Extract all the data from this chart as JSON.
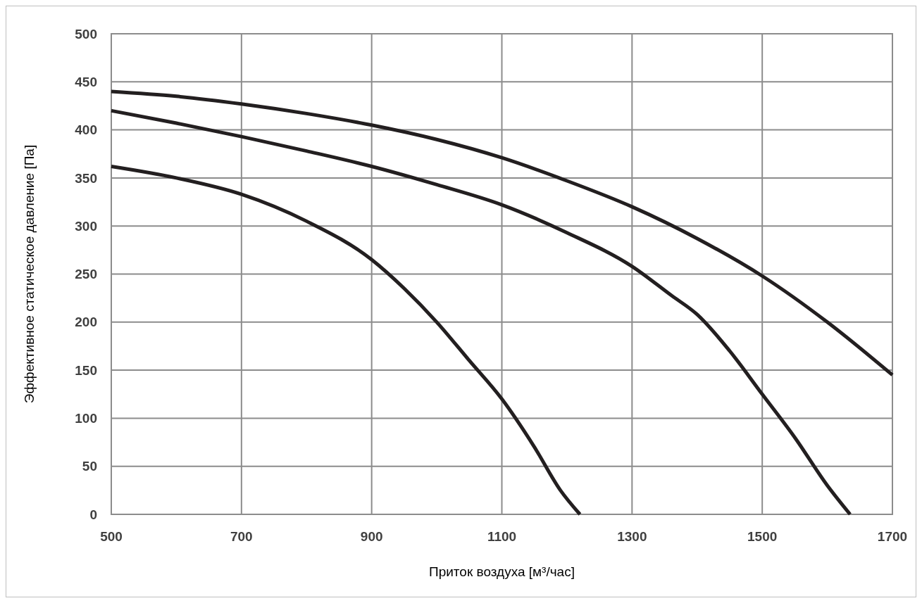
{
  "chart_data": {
    "type": "line",
    "xlabel": "Приток воздуха [м³/час]",
    "ylabel": "Эффективное статическое давление [Па]",
    "xlim": [
      500,
      1700
    ],
    "xticks": [
      500,
      700,
      900,
      1100,
      1300,
      1500,
      1700
    ],
    "ylim": [
      0,
      500
    ],
    "yticks": [
      0,
      50,
      100,
      150,
      200,
      250,
      300,
      350,
      400,
      450,
      500
    ],
    "grid": true,
    "marker": "none",
    "line_style": "solid",
    "series": [
      {
        "color": "#231f20",
        "x": [
          500,
          600,
          700,
          800,
          900,
          1000,
          1100,
          1200,
          1300,
          1400,
          1500,
          1600,
          1700
        ],
        "values": [
          440,
          435,
          427,
          417,
          405,
          390,
          371,
          347,
          320,
          287,
          248,
          200,
          145
        ]
      },
      {
        "color": "#231f20",
        "x": [
          500,
          600,
          700,
          800,
          900,
          1000,
          1100,
          1200,
          1300,
          1360,
          1400,
          1450,
          1500,
          1550,
          1600,
          1635
        ],
        "values": [
          420,
          407,
          393,
          378,
          362,
          343,
          322,
          293,
          258,
          228,
          208,
          170,
          125,
          80,
          30,
          0
        ]
      },
      {
        "color": "#231f20",
        "x": [
          500,
          600,
          700,
          800,
          900,
          950,
          1000,
          1050,
          1100,
          1150,
          1190,
          1220
        ],
        "values": [
          362,
          350,
          333,
          305,
          265,
          235,
          200,
          160,
          120,
          70,
          25,
          0
        ]
      }
    ]
  }
}
